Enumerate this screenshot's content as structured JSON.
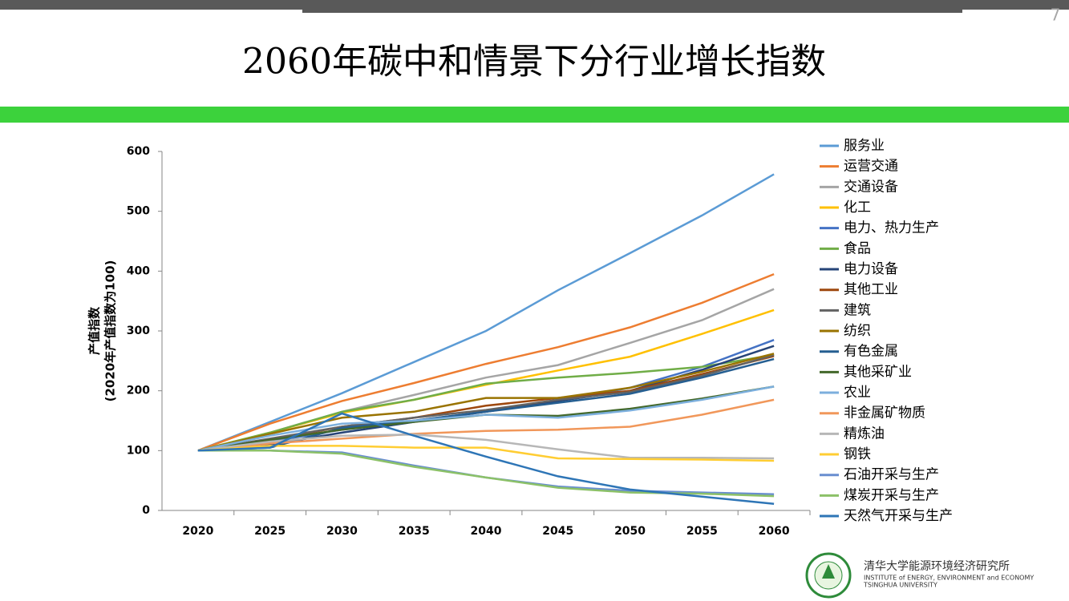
{
  "page_number": "7",
  "title": "2060年碳中和情景下分行业增长指数",
  "chart_data": {
    "type": "line",
    "y_label": [
      "产值指数",
      "(2020年产值指数为100)"
    ],
    "categories": [
      "2020",
      "2025",
      "2030",
      "2035",
      "2040",
      "2045",
      "2050",
      "2055",
      "2060"
    ],
    "ylim": [
      0,
      600
    ],
    "yticks": [
      0,
      100,
      200,
      300,
      400,
      500,
      600
    ],
    "grid": false,
    "legend": "right",
    "series": [
      {
        "name": "服务业",
        "color": "#5b9bd5",
        "values": [
          100,
          148,
          196,
          248,
          300,
          368,
          430,
          493,
          562
        ]
      },
      {
        "name": "运营交通",
        "color": "#ed7d31",
        "values": [
          100,
          145,
          183,
          213,
          245,
          273,
          306,
          347,
          395
        ]
      },
      {
        "name": "交通设备",
        "color": "#a5a5a5",
        "values": [
          100,
          130,
          165,
          193,
          222,
          243,
          280,
          318,
          370
        ]
      },
      {
        "name": "化工",
        "color": "#ffc000",
        "values": [
          100,
          130,
          163,
          185,
          210,
          234,
          257,
          295,
          335
        ]
      },
      {
        "name": "电力、热力生产",
        "color": "#4472c4",
        "values": [
          100,
          115,
          135,
          150,
          165,
          183,
          205,
          240,
          285
        ]
      },
      {
        "name": "食品",
        "color": "#70ad47",
        "values": [
          100,
          130,
          165,
          185,
          212,
          222,
          230,
          240,
          260
        ]
      },
      {
        "name": "电力设备",
        "color": "#264478",
        "values": [
          100,
          110,
          130,
          148,
          165,
          183,
          200,
          235,
          275
        ]
      },
      {
        "name": "其他工业",
        "color": "#9e480e",
        "values": [
          100,
          118,
          140,
          155,
          175,
          188,
          200,
          228,
          258
        ]
      },
      {
        "name": "建筑",
        "color": "#636363",
        "values": [
          100,
          120,
          140,
          155,
          168,
          185,
          198,
          225,
          260
        ]
      },
      {
        "name": "纺织",
        "color": "#997300",
        "values": [
          100,
          128,
          155,
          165,
          188,
          188,
          205,
          232,
          262
        ]
      },
      {
        "name": "有色金属",
        "color": "#255e91",
        "values": [
          100,
          105,
          138,
          150,
          165,
          180,
          195,
          222,
          253
        ]
      },
      {
        "name": "其他采矿业",
        "color": "#43682b",
        "values": [
          100,
          118,
          135,
          148,
          160,
          158,
          170,
          187,
          207
        ]
      },
      {
        "name": "农业",
        "color": "#7cafdd",
        "values": [
          100,
          125,
          145,
          150,
          160,
          155,
          167,
          185,
          207
        ]
      },
      {
        "name": "非金属矿物质",
        "color": "#f1975a",
        "values": [
          100,
          112,
          120,
          128,
          133,
          135,
          140,
          160,
          185
        ]
      },
      {
        "name": "精炼油",
        "color": "#b7b7b7",
        "values": [
          100,
          115,
          125,
          127,
          118,
          102,
          88,
          88,
          87
        ]
      },
      {
        "name": "钢铁",
        "color": "#ffcd33",
        "values": [
          100,
          108,
          108,
          105,
          105,
          87,
          86,
          85,
          83
        ]
      },
      {
        "name": "石油开采与生产",
        "color": "#698ed0",
        "values": [
          100,
          100,
          97,
          75,
          55,
          40,
          33,
          30,
          27
        ]
      },
      {
        "name": "煤炭开采与生产",
        "color": "#8cc168",
        "values": [
          100,
          100,
          95,
          73,
          55,
          38,
          30,
          28,
          24
        ]
      },
      {
        "name": "天然气开采与生产",
        "color": "#2e75b6",
        "values": [
          100,
          105,
          162,
          125,
          90,
          57,
          35,
          23,
          11
        ]
      }
    ]
  },
  "logo": {
    "name_cn": "清华大学能源环境经济研究所",
    "name_en": "INSTITUTE of ENERGY, ENVIRONMENT and ECONOMY",
    "university": "TSINGHUA UNIVERSITY"
  }
}
